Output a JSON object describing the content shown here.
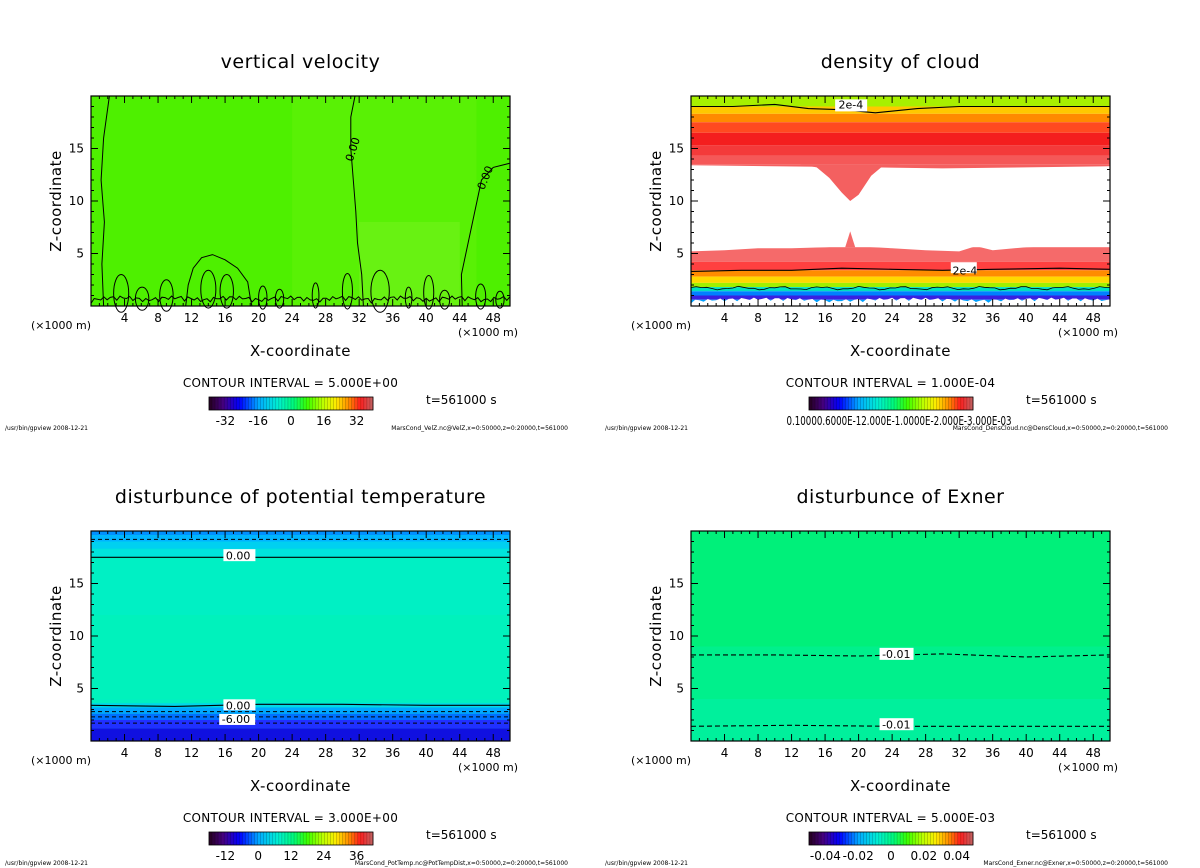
{
  "chart_data": [
    {
      "type": "heatmap",
      "title": "vertical velocity",
      "xlabel": "X-coordinate",
      "ylabel": "Z-coordinate",
      "x_unit": "(×1000 m)",
      "xlim": [
        0,
        50
      ],
      "ylim": [
        0,
        20
      ],
      "x_ticks": [
        "4",
        "8",
        "12",
        "16",
        "20",
        "24",
        "28",
        "32",
        "36",
        "40",
        "44",
        "48"
      ],
      "y_ticks": [
        "5",
        "10",
        "15"
      ],
      "contour_labels": [
        "0.00",
        "0.00"
      ],
      "contour_interval": "CONTOUR INTERVAL = 5.000E+00",
      "time": "t=561000 s",
      "colorbar_ticks": [
        "-32",
        "-16",
        "0",
        "16",
        "32"
      ],
      "colorbar_range": [
        -40,
        40
      ],
      "field_value_range": [
        -2,
        2
      ],
      "program": "/usr/bin/gpview  2008-12-21",
      "source": "MarsCond_VelZ.nc@VelZ,x=0:50000,z=0:20000,t=561000"
    },
    {
      "type": "heatmap",
      "title": "density of cloud",
      "xlabel": "X-coordinate",
      "ylabel": "Z-coordinate",
      "x_unit": "(×1000 m)",
      "xlim": [
        0,
        50
      ],
      "ylim": [
        0,
        20
      ],
      "x_ticks": [
        "4",
        "8",
        "12",
        "16",
        "20",
        "24",
        "28",
        "32",
        "36",
        "40",
        "44",
        "48"
      ],
      "y_ticks": [
        "5",
        "10",
        "15"
      ],
      "contour_labels": [
        "2e-4",
        "2e-4"
      ],
      "contour_interval": "CONTOUR INTERVAL = 1.000E-04",
      "time": "t=561000 s",
      "colorbar_ticks": "0.10000.6000E-12.000E-1.0000E-2.000E-3.000E-03",
      "program": "/usr/bin/gpview  2008-12-21",
      "source": "MarsCond_DensCloud.nc@DensCloud,x=0:50000,z=0:20000,t=561000"
    },
    {
      "type": "heatmap",
      "title": "disturbunce of potential temperature",
      "xlabel": "X-coordinate",
      "ylabel": "Z-coordinate",
      "x_unit": "(×1000 m)",
      "xlim": [
        0,
        50
      ],
      "ylim": [
        0,
        20
      ],
      "x_ticks": [
        "4",
        "8",
        "12",
        "16",
        "20",
        "24",
        "28",
        "32",
        "36",
        "40",
        "44",
        "48"
      ],
      "y_ticks": [
        "5",
        "10",
        "15"
      ],
      "contour_labels": [
        "0.00",
        "0.00",
        "-6.00"
      ],
      "contour_interval": "CONTOUR INTERVAL = 3.000E+00",
      "time": "t=561000 s",
      "colorbar_ticks": [
        "-12",
        "0",
        "12",
        "24",
        "36"
      ],
      "colorbar_range": [
        -18,
        42
      ],
      "program": "/usr/bin/gpview  2008-12-21",
      "source": "MarsCond_PotTemp.nc@PotTempDist,x=0:50000,z=0:20000,t=561000"
    },
    {
      "type": "heatmap",
      "title": "disturbunce of Exner",
      "xlabel": "X-coordinate",
      "ylabel": "Z-coordinate",
      "x_unit": "(×1000 m)",
      "xlim": [
        0,
        50
      ],
      "ylim": [
        0,
        20
      ],
      "x_ticks": [
        "4",
        "8",
        "12",
        "16",
        "20",
        "24",
        "28",
        "32",
        "36",
        "40",
        "44",
        "48"
      ],
      "y_ticks": [
        "5",
        "10",
        "15"
      ],
      "contour_labels": [
        "-0.01",
        "-0.01"
      ],
      "contour_interval": "CONTOUR INTERVAL = 5.000E-03",
      "time": "t=561000 s",
      "colorbar_ticks": [
        "-0.04",
        "-0.02",
        "0",
        "0.02",
        "0.04"
      ],
      "colorbar_range": [
        -0.05,
        0.05
      ],
      "program": "/usr/bin/gpview  2008-12-21",
      "source": "MarsCond_Exner.nc@Exner,x=0:50000,z=0:20000,t=561000"
    }
  ]
}
